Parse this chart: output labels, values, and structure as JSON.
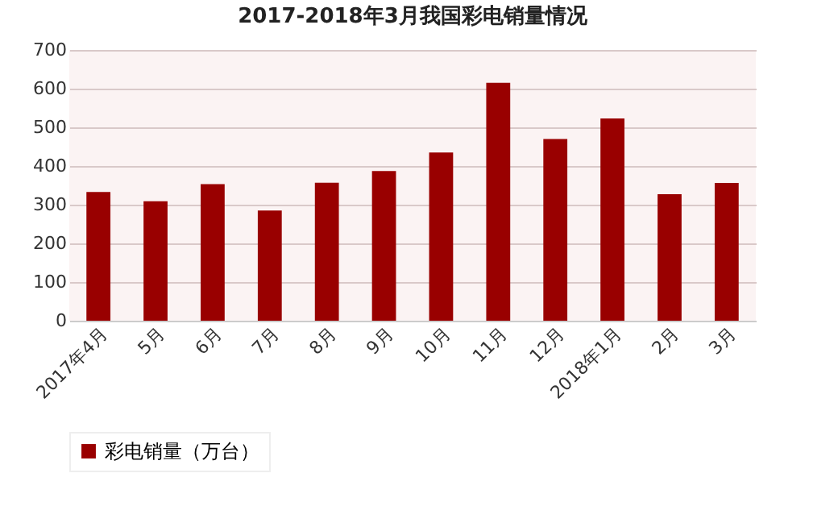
{
  "chart_data": {
    "type": "bar",
    "title": "2017-2018年3月我国彩电销量情况",
    "categories": [
      "2017年4月",
      "5月",
      "6月",
      "7月",
      "8月",
      "9月",
      "10月",
      "11月",
      "12月",
      "2018年1月",
      "2月",
      "3月"
    ],
    "series": [
      {
        "name": "彩电销量（万台）",
        "color": "#990000",
        "values": [
          333,
          309,
          353,
          285,
          357,
          387,
          435,
          615,
          470,
          523,
          327,
          356
        ]
      }
    ],
    "ylim": [
      0,
      700
    ],
    "yticks": [
      0,
      100,
      200,
      300,
      400,
      500,
      600,
      700
    ],
    "grid": "y",
    "legend": "bottom"
  }
}
